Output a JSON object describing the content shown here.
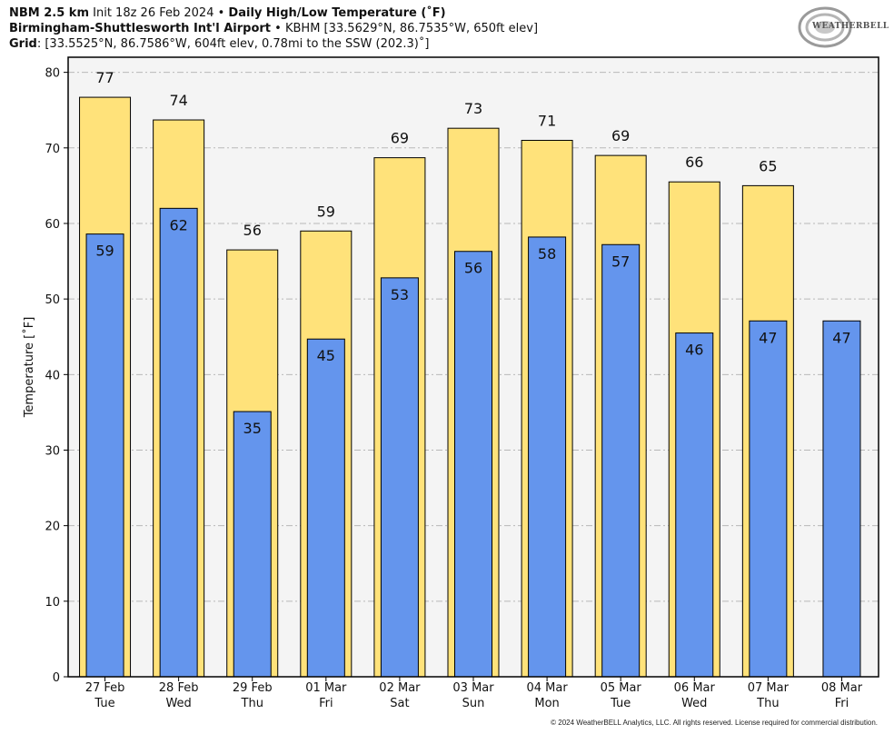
{
  "header": {
    "line1_bold": "NBM 2.5 km",
    "line1_init": "Init 18z 26 Feb 2024",
    "line1_sep": "•",
    "line1_title": "Daily High/Low Temperature (˚F)",
    "line2_bold": "Birmingham-Shuttlesworth Int'l Airport",
    "line2_sep": "•",
    "line2_rest": "KBHM [33.5629°N, 86.7535°W, 650ft elev]",
    "line3_bold": "Grid",
    "line3_rest": ": [33.5525°N, 86.7586°W, 604ft elev, 0.78mi to the SSW (202.3)˚]"
  },
  "logo": {
    "text": "WEATHERBELL"
  },
  "footer": {
    "text": "© 2024 WeatherBELL Analytics, LLC. All rights reserved. License required for commercial distribution."
  },
  "colors": {
    "high_fill": "#ffe27a",
    "low_fill": "#6495ed",
    "plot_bg": "#f4f4f4",
    "grid": "#b8b8b8",
    "bar_edge": "#000000"
  },
  "chart_data": {
    "type": "bar",
    "ylabel": "Temperature [˚F]",
    "ylim": [
      0,
      82
    ],
    "yticks": [
      0,
      10,
      20,
      30,
      40,
      50,
      60,
      70,
      80
    ],
    "grid": true,
    "categories": [
      {
        "date": "27 Feb",
        "day": "Tue"
      },
      {
        "date": "28 Feb",
        "day": "Wed"
      },
      {
        "date": "29 Feb",
        "day": "Thu"
      },
      {
        "date": "01 Mar",
        "day": "Fri"
      },
      {
        "date": "02 Mar",
        "day": "Sat"
      },
      {
        "date": "03 Mar",
        "day": "Sun"
      },
      {
        "date": "04 Mar",
        "day": "Mon"
      },
      {
        "date": "05 Mar",
        "day": "Tue"
      },
      {
        "date": "06 Mar",
        "day": "Wed"
      },
      {
        "date": "07 Mar",
        "day": "Thu"
      },
      {
        "date": "08 Mar",
        "day": "Fri"
      }
    ],
    "series": [
      {
        "values": [
          76.7,
          73.7,
          56.5,
          59.0,
          68.7,
          72.6,
          71.0,
          69.0,
          65.5,
          65.0,
          null
        ],
        "labels": [
          "77",
          "74",
          "56",
          "59",
          "69",
          "73",
          "71",
          "69",
          "66",
          "65",
          ""
        ]
      },
      {
        "values": [
          58.6,
          62.0,
          35.1,
          44.7,
          52.8,
          56.3,
          58.2,
          57.2,
          45.5,
          47.1,
          47.1
        ],
        "labels": [
          "59",
          "62",
          "35",
          "45",
          "53",
          "56",
          "58",
          "57",
          "46",
          "47",
          "47"
        ]
      }
    ]
  }
}
